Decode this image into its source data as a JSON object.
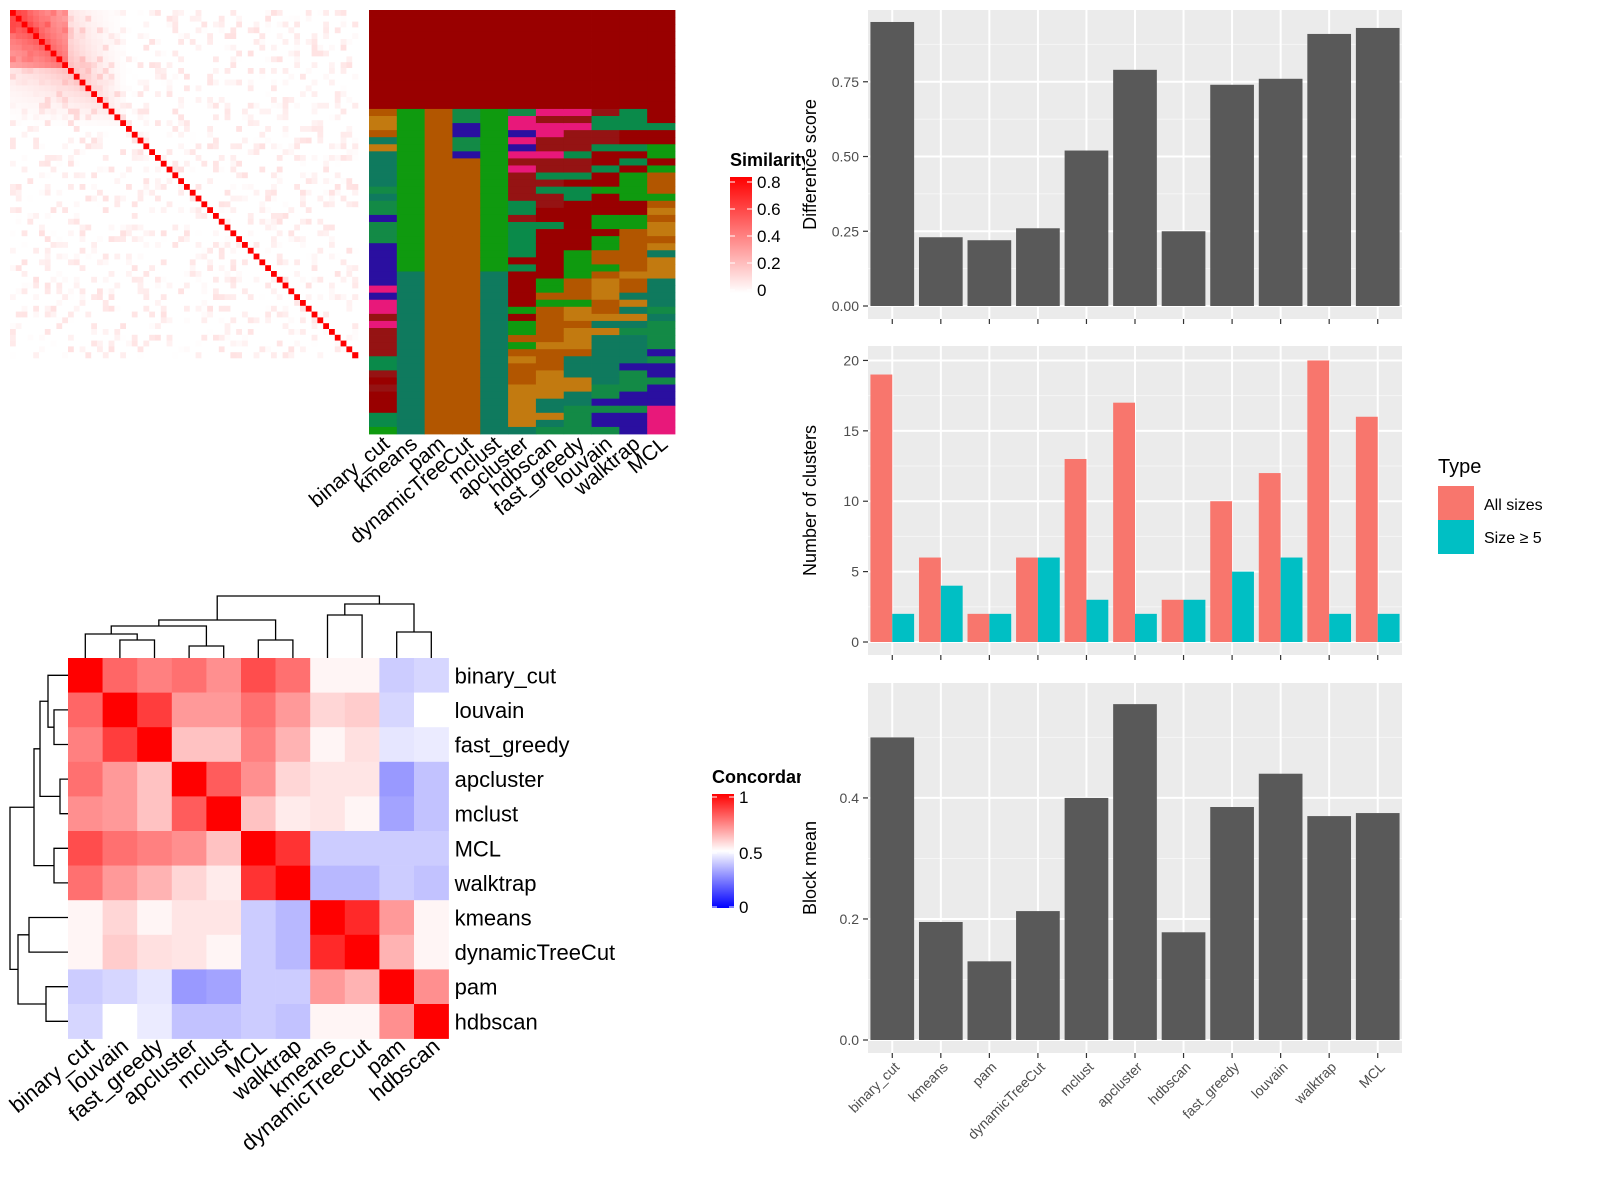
{
  "methods": [
    "binary_cut",
    "kmeans",
    "pam",
    "dynamicTreeCut",
    "mclust",
    "apcluster",
    "hdbscan",
    "fast_greedy",
    "louvain",
    "walktrap",
    "MCL"
  ],
  "similarity_legend": {
    "title": "Similarity",
    "ticks": [
      "0.8",
      "0.6",
      "0.4",
      "0.2",
      "0"
    ]
  },
  "concordance_legend": {
    "title": "Concordance",
    "ticks": [
      "1",
      "0.5",
      "0"
    ]
  },
  "type_legend": {
    "title": "Type",
    "items": [
      "All sizes",
      "Size ≥ 5"
    ],
    "colors": [
      "#F8766D",
      "#00BFC4"
    ]
  },
  "heatmap_order": [
    "binary_cut",
    "louvain",
    "fast_greedy",
    "apcluster",
    "mclust",
    "MCL",
    "walktrap",
    "kmeans",
    "dynamicTreeCut",
    "pam",
    "hdbscan"
  ],
  "chart_data": [
    {
      "type": "bar",
      "categories": [
        "binary_cut",
        "kmeans",
        "pam",
        "dynamicTreeCut",
        "mclust",
        "apcluster",
        "hdbscan",
        "fast_greedy",
        "louvain",
        "walktrap",
        "MCL"
      ],
      "values": [
        0.95,
        0.23,
        0.22,
        0.26,
        0.52,
        0.79,
        0.25,
        0.74,
        0.76,
        0.91,
        0.93
      ],
      "ylabel": "Difference score",
      "yticks": [
        "0.00",
        "0.25",
        "0.50",
        "0.75"
      ],
      "ylim": [
        0,
        0.97
      ]
    },
    {
      "type": "bar",
      "categories": [
        "binary_cut",
        "kmeans",
        "pam",
        "dynamicTreeCut",
        "mclust",
        "apcluster",
        "hdbscan",
        "fast_greedy",
        "louvain",
        "walktrap",
        "MCL"
      ],
      "series": [
        {
          "name": "All sizes",
          "values": [
            19,
            6,
            2,
            6,
            13,
            17,
            3,
            10,
            12,
            20,
            16
          ]
        },
        {
          "name": "Size ≥ 5",
          "values": [
            2,
            4,
            2,
            6,
            3,
            2,
            3,
            5,
            6,
            2,
            2
          ]
        }
      ],
      "ylabel": "Number of clusters",
      "yticks": [
        "0",
        "5",
        "10",
        "15",
        "20"
      ],
      "ylim": [
        0,
        20.6
      ]
    },
    {
      "type": "bar",
      "categories": [
        "binary_cut",
        "kmeans",
        "pam",
        "dynamicTreeCut",
        "mclust",
        "apcluster",
        "hdbscan",
        "fast_greedy",
        "louvain",
        "walktrap",
        "MCL"
      ],
      "values": [
        0.5,
        0.195,
        0.13,
        0.213,
        0.4,
        0.555,
        0.178,
        0.385,
        0.44,
        0.37,
        0.375
      ],
      "ylabel": "Block mean",
      "yticks": [
        "0.0",
        "0.2",
        "0.4"
      ],
      "ylim": [
        0,
        0.58
      ]
    },
    {
      "type": "heatmap",
      "rows": [
        "binary_cut",
        "louvain",
        "fast_greedy",
        "apcluster",
        "mclust",
        "MCL",
        "walktrap",
        "kmeans",
        "dynamicTreeCut",
        "pam",
        "hdbscan"
      ],
      "columns": [
        "binary_cut",
        "louvain",
        "fast_greedy",
        "apcluster",
        "mclust",
        "MCL",
        "walktrap",
        "kmeans",
        "dynamicTreeCut",
        "pam",
        "hdbscan"
      ],
      "values": [
        [
          1.0,
          0.8,
          0.75,
          0.78,
          0.72,
          0.85,
          0.78,
          0.52,
          0.52,
          0.4,
          0.42
        ],
        [
          0.8,
          1.0,
          0.88,
          0.7,
          0.7,
          0.78,
          0.7,
          0.58,
          0.6,
          0.42,
          0.5
        ],
        [
          0.75,
          0.88,
          1.0,
          0.62,
          0.62,
          0.75,
          0.65,
          0.52,
          0.56,
          0.45,
          0.46
        ],
        [
          0.78,
          0.7,
          0.62,
          1.0,
          0.82,
          0.72,
          0.58,
          0.55,
          0.55,
          0.3,
          0.38
        ],
        [
          0.72,
          0.7,
          0.62,
          0.82,
          1.0,
          0.62,
          0.54,
          0.55,
          0.52,
          0.32,
          0.38
        ],
        [
          0.85,
          0.78,
          0.75,
          0.72,
          0.62,
          1.0,
          0.9,
          0.4,
          0.4,
          0.4,
          0.4
        ],
        [
          0.78,
          0.7,
          0.65,
          0.58,
          0.54,
          0.9,
          1.0,
          0.36,
          0.36,
          0.4,
          0.38
        ],
        [
          0.52,
          0.58,
          0.52,
          0.55,
          0.55,
          0.4,
          0.36,
          1.0,
          0.92,
          0.7,
          0.52
        ],
        [
          0.52,
          0.6,
          0.56,
          0.55,
          0.52,
          0.4,
          0.36,
          0.92,
          1.0,
          0.65,
          0.52
        ],
        [
          0.4,
          0.42,
          0.45,
          0.3,
          0.32,
          0.4,
          0.4,
          0.7,
          0.65,
          1.0,
          0.72
        ],
        [
          0.42,
          0.5,
          0.46,
          0.38,
          0.38,
          0.4,
          0.38,
          0.52,
          0.52,
          0.72,
          1.0
        ]
      ]
    }
  ],
  "assignment_colors": [
    "#990000",
    "#0f9a0f",
    "#b25600",
    "#c27a10",
    "#0f7a5e",
    "#138a46",
    "#2a0fa0",
    "#e8187a",
    "#951313",
    "#0a8a4a"
  ]
}
